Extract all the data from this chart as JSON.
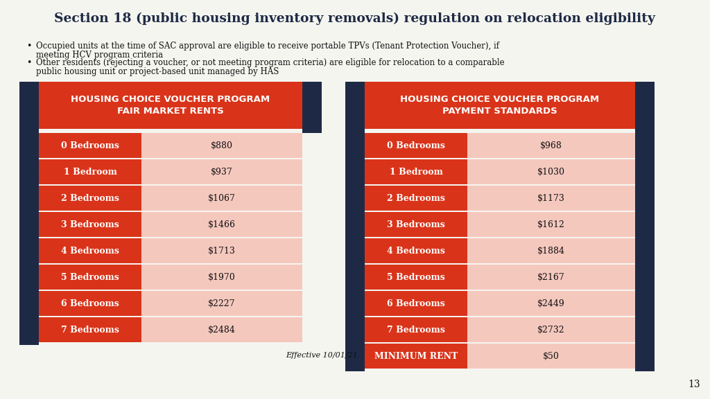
{
  "title": "Section 18 (public housing inventory removals) regulation on relocation eligibility",
  "bullet1_l1": "Occupied units at the time of SAC approval are eligible to receive portable TPVs (Tenant Protection Voucher), if",
  "bullet1_l2": "meeting HCV program criteria",
  "bullet2_l1": "Other residents (rejecting a voucher, or not meeting program criteria) are eligible for relocation to a comparable",
  "bullet2_l2": "public housing unit or project-based unit managed by HAS",
  "table1_header": "HOUSING CHOICE VOUCHER PROGRAM\nFAIR MARKET RENTS",
  "table1_rows": [
    [
      "0 Bedrooms",
      "$880"
    ],
    [
      "1 Bedroom",
      "$937"
    ],
    [
      "2 Bedrooms",
      "$1067"
    ],
    [
      "3 Bedrooms",
      "$1466"
    ],
    [
      "4 Bedrooms",
      "$1713"
    ],
    [
      "5 Bedrooms",
      "$1970"
    ],
    [
      "6 Bedrooms",
      "$2227"
    ],
    [
      "7 Bedrooms",
      "$2484"
    ]
  ],
  "table2_header": "HOUSING CHOICE VOUCHER PROGRAM\nPAYMENT STANDARDS",
  "table2_rows": [
    [
      "0 Bedrooms",
      "$968"
    ],
    [
      "1 Bedroom",
      "$1030"
    ],
    [
      "2 Bedrooms",
      "$1173"
    ],
    [
      "3 Bedrooms",
      "$1612"
    ],
    [
      "4 Bedrooms",
      "$1884"
    ],
    [
      "5 Bedrooms",
      "$2167"
    ],
    [
      "6 Bedrooms",
      "$2449"
    ],
    [
      "7 Bedrooms",
      "$2732"
    ],
    [
      "MINIMUM RENT",
      "$50"
    ]
  ],
  "footer_text": "Effective 10/01/21",
  "page_number": "13",
  "bg_color": "#F5F5F0",
  "dark_navy": "#1e2a45",
  "header_red": "#D9341A",
  "pink_light": "#F5C8BE",
  "row_red": "#D9341A",
  "white": "#FFFFFF",
  "title_color": "#1e2a45",
  "text_black": "#111111"
}
